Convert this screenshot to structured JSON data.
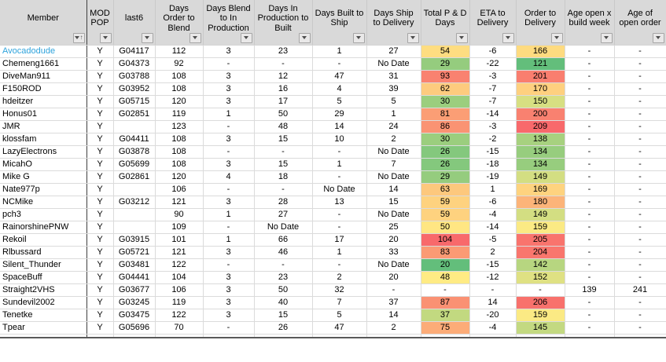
{
  "colors": {
    "header_bg": "#D9D9D9",
    "gridline": "#DBDBDB",
    "member_divider": "#3F3F3F",
    "member_link": "#2EA3DC",
    "scale_green": "#63BE7B",
    "scale_yellow": "#FFEB84",
    "scale_red": "#F8696B",
    "bottom_edge": "#595959"
  },
  "icons": {
    "filter_dropdown": "filter-dropdown-arrow",
    "member_sort": "↑"
  },
  "table": {
    "columns": [
      {
        "key": "member",
        "label": "Member",
        "sorted": true
      },
      {
        "key": "mod_pop",
        "label": "MOD POP"
      },
      {
        "key": "last6",
        "label": "last6"
      },
      {
        "key": "days_order_to_blend",
        "label": "Days Order to Blend"
      },
      {
        "key": "days_blend_to_in_production",
        "label": "Days Blend to  In Production"
      },
      {
        "key": "days_in_production_to_built",
        "label": "Days In Production to Built"
      },
      {
        "key": "days_built_to_ship",
        "label": "Days Built to Ship"
      },
      {
        "key": "days_ship_to_delivery",
        "label": "Days Ship to Delivery"
      },
      {
        "key": "total_pd_days",
        "label": "Total P & D Days",
        "bg_key": "total_pd_bg"
      },
      {
        "key": "eta_to_delivery",
        "label": "ETA to Delivery"
      },
      {
        "key": "order_to_delivery",
        "label": "Order to Delivery",
        "bg_key": "order_to_delivery_bg"
      },
      {
        "key": "age_open_x_build_week",
        "label": "Age open x build week"
      },
      {
        "key": "age_of_open_order",
        "label": "Age of open order"
      }
    ],
    "rows": [
      {
        "member": "Avocadodude",
        "member_color": "#2EA3DC",
        "mod_pop": "Y",
        "last6": "G04117",
        "days_order_to_blend": "112",
        "days_blend_to_in_production": "3",
        "days_in_production_to_built": "23",
        "days_built_to_ship": "1",
        "days_ship_to_delivery": "27",
        "total_pd_days": "54",
        "total_pd_bg": "#FEDD81",
        "eta_to_delivery": "-6",
        "order_to_delivery": "166",
        "order_to_delivery_bg": "#FEDB80",
        "age_open_x_build_week": "-",
        "age_of_open_order": "-"
      },
      {
        "member": "Chemeng1661",
        "mod_pop": "Y",
        "last6": "G04373",
        "days_order_to_blend": "92",
        "days_blend_to_in_production": "-",
        "days_in_production_to_built": "-",
        "days_built_to_ship": "-",
        "days_ship_to_delivery": "No Date",
        "total_pd_days": "29",
        "total_pd_bg": "#95CC7E",
        "eta_to_delivery": "-22",
        "order_to_delivery": "121",
        "order_to_delivery_bg": "#63BE7B",
        "age_open_x_build_week": "-",
        "age_of_open_order": "-"
      },
      {
        "member": "DiveMan911",
        "mod_pop": "Y",
        "last6": "G03788",
        "days_order_to_blend": "108",
        "days_blend_to_in_production": "3",
        "days_in_production_to_built": "12",
        "days_built_to_ship": "47",
        "days_ship_to_delivery": "31",
        "total_pd_days": "93",
        "total_pd_bg": "#F98270",
        "eta_to_delivery": "-3",
        "order_to_delivery": "201",
        "order_to_delivery_bg": "#F97E6F",
        "age_open_x_build_week": "-",
        "age_of_open_order": "-"
      },
      {
        "member": "F150ROD",
        "mod_pop": "Y",
        "last6": "G03952",
        "days_order_to_blend": "108",
        "days_blend_to_in_production": "3",
        "days_in_production_to_built": "16",
        "days_built_to_ship": "4",
        "days_ship_to_delivery": "39",
        "total_pd_days": "62",
        "total_pd_bg": "#FDCB7E",
        "eta_to_delivery": "-7",
        "order_to_delivery": "170",
        "order_to_delivery_bg": "#FED07F",
        "age_open_x_build_week": "-",
        "age_of_open_order": "-"
      },
      {
        "member": "hdeitzer",
        "mod_pop": "Y",
        "last6": "G05715",
        "days_order_to_blend": "120",
        "days_blend_to_in_production": "3",
        "days_in_production_to_built": "17",
        "days_built_to_ship": "5",
        "days_ship_to_delivery": "5",
        "total_pd_days": "30",
        "total_pd_bg": "#9BCE7E",
        "eta_to_delivery": "-7",
        "order_to_delivery": "150",
        "order_to_delivery_bg": "#D7DF82",
        "age_open_x_build_week": "-",
        "age_of_open_order": "-"
      },
      {
        "member": "Honus01",
        "mod_pop": "Y",
        "last6": "G02851",
        "days_order_to_blend": "119",
        "days_blend_to_in_production": "1",
        "days_in_production_to_built": "50",
        "days_built_to_ship": "29",
        "days_ship_to_delivery": "1",
        "total_pd_days": "81",
        "total_pd_bg": "#FB9E75",
        "eta_to_delivery": "-14",
        "order_to_delivery": "200",
        "order_to_delivery_bg": "#F98170",
        "age_open_x_build_week": "-",
        "age_of_open_order": "-"
      },
      {
        "member": "JMR",
        "mod_pop": "Y",
        "last6": "",
        "days_order_to_blend": "123",
        "days_blend_to_in_production": "-",
        "days_in_production_to_built": "48",
        "days_built_to_ship": "14",
        "days_ship_to_delivery": "24",
        "total_pd_days": "86",
        "total_pd_bg": "#FA9373",
        "eta_to_delivery": "-3",
        "order_to_delivery": "209",
        "order_to_delivery_bg": "#F8696B",
        "age_open_x_build_week": "-",
        "age_of_open_order": "-"
      },
      {
        "member": "klossfam",
        "mod_pop": "Y",
        "last6": "G04411",
        "days_order_to_blend": "108",
        "days_blend_to_in_production": "3",
        "days_in_production_to_built": "15",
        "days_built_to_ship": "10",
        "days_ship_to_delivery": "2",
        "total_pd_days": "30",
        "total_pd_bg": "#9BCE7E",
        "eta_to_delivery": "-2",
        "order_to_delivery": "138",
        "order_to_delivery_bg": "#A7D17F",
        "age_open_x_build_week": "-",
        "age_of_open_order": "-"
      },
      {
        "member": "LazyElectrons",
        "mod_pop": "Y",
        "last6": "G03878",
        "days_order_to_blend": "108",
        "days_blend_to_in_production": "-",
        "days_in_production_to_built": "-",
        "days_built_to_ship": "-",
        "days_ship_to_delivery": "No Date",
        "total_pd_days": "26",
        "total_pd_bg": "#84C87D",
        "eta_to_delivery": "-15",
        "order_to_delivery": "134",
        "order_to_delivery_bg": "#97CD7E",
        "age_open_x_build_week": "-",
        "age_of_open_order": "-"
      },
      {
        "member": "MicahO",
        "mod_pop": "Y",
        "last6": "G05699",
        "days_order_to_blend": "108",
        "days_blend_to_in_production": "3",
        "days_in_production_to_built": "15",
        "days_built_to_ship": "1",
        "days_ship_to_delivery": "7",
        "total_pd_days": "26",
        "total_pd_bg": "#84C87D",
        "eta_to_delivery": "-18",
        "order_to_delivery": "134",
        "order_to_delivery_bg": "#97CD7E",
        "age_open_x_build_week": "-",
        "age_of_open_order": "-"
      },
      {
        "member": "Mike G",
        "mod_pop": "Y",
        "last6": "G02861",
        "days_order_to_blend": "120",
        "days_blend_to_in_production": "4",
        "days_in_production_to_built": "18",
        "days_built_to_ship": "-",
        "days_ship_to_delivery": "No Date",
        "total_pd_days": "29",
        "total_pd_bg": "#95CC7E",
        "eta_to_delivery": "-19",
        "order_to_delivery": "149",
        "order_to_delivery_bg": "#D3DE82",
        "age_open_x_build_week": "-",
        "age_of_open_order": "-"
      },
      {
        "member": "Nate977p",
        "mod_pop": "Y",
        "last6": "",
        "days_order_to_blend": "106",
        "days_blend_to_in_production": "-",
        "days_in_production_to_built": "-",
        "days_built_to_ship": "No Date",
        "days_ship_to_delivery": "14",
        "total_pd_days": "63",
        "total_pd_bg": "#FDC87D",
        "eta_to_delivery": "1",
        "order_to_delivery": "169",
        "order_to_delivery_bg": "#FED37F",
        "age_open_x_build_week": "-",
        "age_of_open_order": "-"
      },
      {
        "member": "NCMike",
        "mod_pop": "Y",
        "last6": "G03212",
        "days_order_to_blend": "121",
        "days_blend_to_in_production": "3",
        "days_in_production_to_built": "28",
        "days_built_to_ship": "13",
        "days_ship_to_delivery": "15",
        "total_pd_days": "59",
        "total_pd_bg": "#FED27F",
        "eta_to_delivery": "-6",
        "order_to_delivery": "180",
        "order_to_delivery_bg": "#FCB479",
        "age_open_x_build_week": "-",
        "age_of_open_order": "-"
      },
      {
        "member": "pch3",
        "mod_pop": "Y",
        "last6": "",
        "days_order_to_blend": "90",
        "days_blend_to_in_production": "1",
        "days_in_production_to_built": "27",
        "days_built_to_ship": "-",
        "days_ship_to_delivery": "No Date",
        "total_pd_days": "59",
        "total_pd_bg": "#FED27F",
        "eta_to_delivery": "-4",
        "order_to_delivery": "149",
        "order_to_delivery_bg": "#D3DE82",
        "age_open_x_build_week": "-",
        "age_of_open_order": "-"
      },
      {
        "member": "RainorshinePNW",
        "mod_pop": "Y",
        "last6": "",
        "days_order_to_blend": "109",
        "days_blend_to_in_production": "-",
        "days_in_production_to_built": "No Date",
        "days_built_to_ship": "-",
        "days_ship_to_delivery": "25",
        "total_pd_days": "50",
        "total_pd_bg": "#FFE683",
        "eta_to_delivery": "-14",
        "order_to_delivery": "159",
        "order_to_delivery_bg": "#FBEA84",
        "age_open_x_build_week": "-",
        "age_of_open_order": "-"
      },
      {
        "member": "Rekoil",
        "mod_pop": "Y",
        "last6": "G03915",
        "days_order_to_blend": "101",
        "days_blend_to_in_production": "1",
        "days_in_production_to_built": "66",
        "days_built_to_ship": "17",
        "days_ship_to_delivery": "20",
        "total_pd_days": "104",
        "total_pd_bg": "#F8696B",
        "eta_to_delivery": "-5",
        "order_to_delivery": "205",
        "order_to_delivery_bg": "#F9746D",
        "age_open_x_build_week": "-",
        "age_of_open_order": "-"
      },
      {
        "member": "Rlbussard",
        "mod_pop": "Y",
        "last6": "G05721",
        "days_order_to_blend": "121",
        "days_blend_to_in_production": "3",
        "days_in_production_to_built": "46",
        "days_built_to_ship": "1",
        "days_ship_to_delivery": "33",
        "total_pd_days": "83",
        "total_pd_bg": "#FB9A74",
        "eta_to_delivery": "2",
        "order_to_delivery": "204",
        "order_to_delivery_bg": "#F9766D",
        "age_open_x_build_week": "-",
        "age_of_open_order": "-"
      },
      {
        "member": "Silent_Thunder",
        "mod_pop": "Y",
        "last6": "G03481",
        "days_order_to_blend": "122",
        "days_blend_to_in_production": "-",
        "days_in_production_to_built": "-",
        "days_built_to_ship": "-",
        "days_ship_to_delivery": "No Date",
        "total_pd_days": "20",
        "total_pd_bg": "#63BE7B",
        "eta_to_delivery": "-15",
        "order_to_delivery": "142",
        "order_to_delivery_bg": "#B7D680",
        "age_open_x_build_week": "-",
        "age_of_open_order": "-"
      },
      {
        "member": "SpaceBuff",
        "mod_pop": "Y",
        "last6": "G04441",
        "days_order_to_blend": "104",
        "days_blend_to_in_production": "3",
        "days_in_production_to_built": "23",
        "days_built_to_ship": "2",
        "days_ship_to_delivery": "20",
        "total_pd_days": "48",
        "total_pd_bg": "#FFEB84",
        "eta_to_delivery": "-12",
        "order_to_delivery": "152",
        "order_to_delivery_bg": "#DFE183",
        "age_open_x_build_week": "-",
        "age_of_open_order": "-"
      },
      {
        "member": "Straight2VHS",
        "mod_pop": "Y",
        "last6": "G03677",
        "days_order_to_blend": "106",
        "days_blend_to_in_production": "3",
        "days_in_production_to_built": "50",
        "days_built_to_ship": "32",
        "days_ship_to_delivery": "-",
        "total_pd_days": "-",
        "eta_to_delivery": "-",
        "order_to_delivery": "-",
        "age_open_x_build_week": "139",
        "age_of_open_order": "241"
      },
      {
        "member": "Sundevil2002",
        "mod_pop": "Y",
        "last6": "G03245",
        "days_order_to_blend": "119",
        "days_blend_to_in_production": "3",
        "days_in_production_to_built": "40",
        "days_built_to_ship": "7",
        "days_ship_to_delivery": "37",
        "total_pd_days": "87",
        "total_pd_bg": "#FA9173",
        "eta_to_delivery": "14",
        "order_to_delivery": "206",
        "order_to_delivery_bg": "#F8716C",
        "age_open_x_build_week": "-",
        "age_of_open_order": "-"
      },
      {
        "member": "Tenetke",
        "mod_pop": "Y",
        "last6": "G03475",
        "days_order_to_blend": "122",
        "days_blend_to_in_production": "3",
        "days_in_production_to_built": "15",
        "days_built_to_ship": "5",
        "days_ship_to_delivery": "14",
        "total_pd_days": "37",
        "total_pd_bg": "#C2D980",
        "eta_to_delivery": "-20",
        "order_to_delivery": "159",
        "order_to_delivery_bg": "#FBEA84",
        "age_open_x_build_week": "-",
        "age_of_open_order": "-"
      },
      {
        "member": "Tpear",
        "mod_pop": "Y",
        "last6": "G05696",
        "days_order_to_blend": "70",
        "days_blend_to_in_production": "-",
        "days_in_production_to_built": "26",
        "days_built_to_ship": "47",
        "days_ship_to_delivery": "2",
        "total_pd_days": "75",
        "total_pd_bg": "#FCAC78",
        "eta_to_delivery": "-4",
        "order_to_delivery": "145",
        "order_to_delivery_bg": "#C3D981",
        "age_open_x_build_week": "-",
        "age_of_open_order": "-"
      }
    ]
  }
}
